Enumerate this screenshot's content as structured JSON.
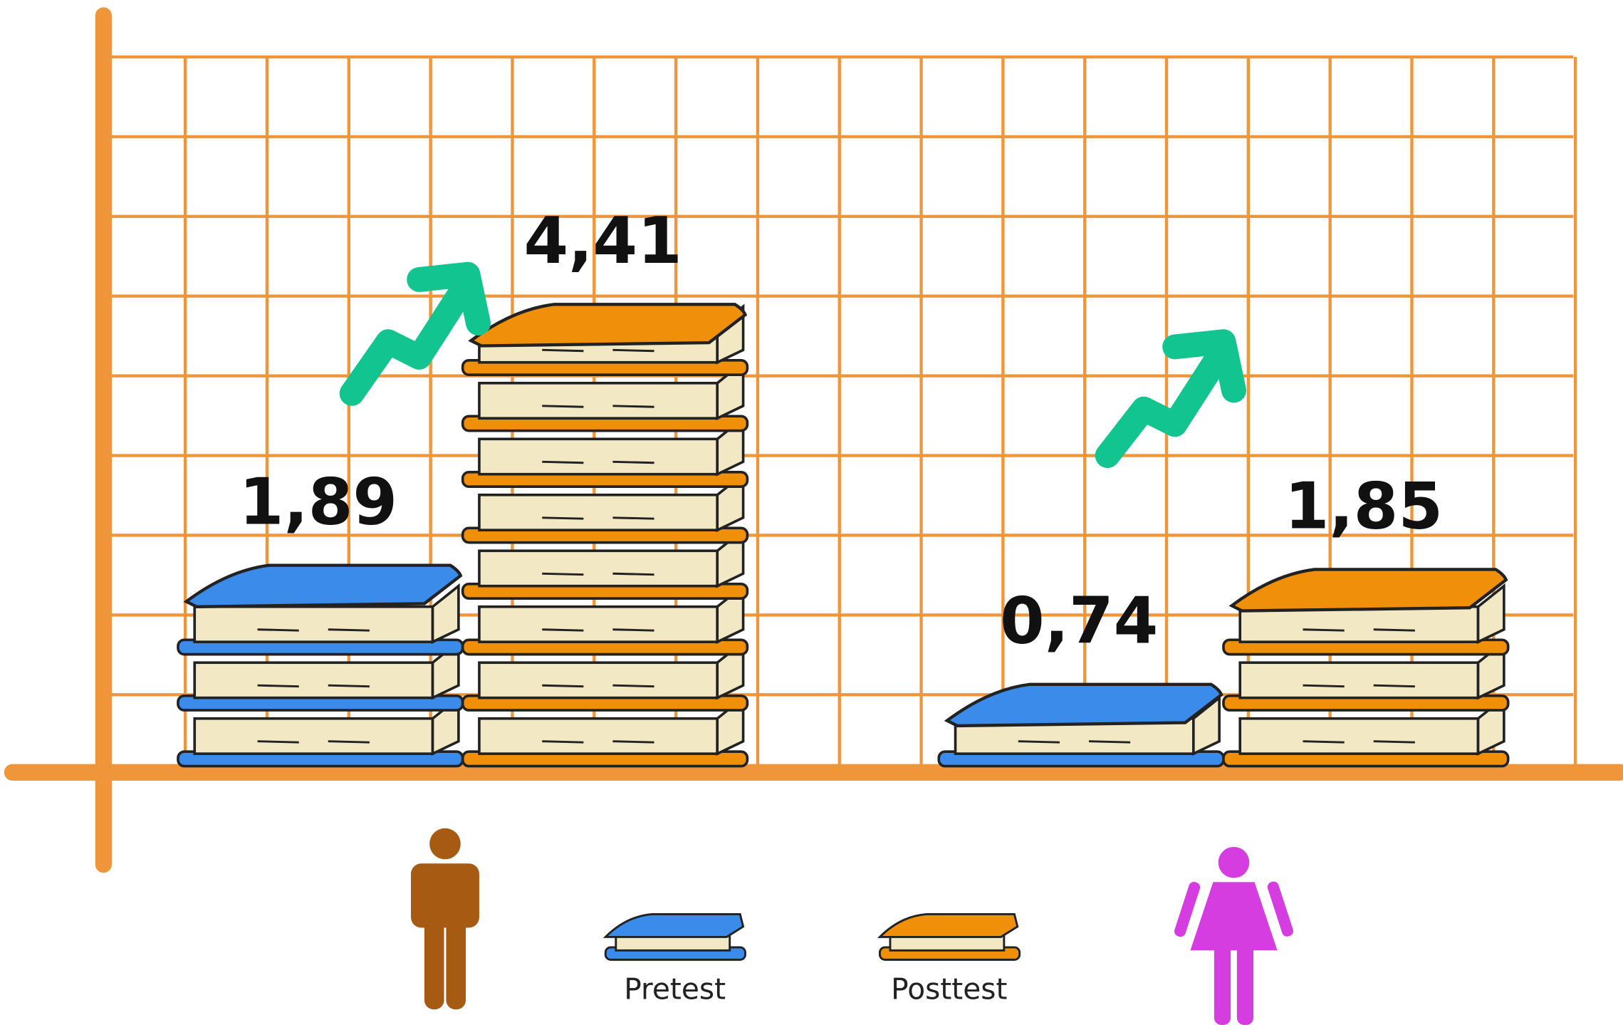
{
  "chart_data": {
    "type": "pictograph",
    "categories": [
      null,
      null
    ],
    "series": [
      {
        "name": "Pretest",
        "color": "#3b8beb",
        "values": [
          1.89,
          0.74
        ],
        "value_labels": [
          "1,89",
          "0,74"
        ]
      },
      {
        "name": "Posttest",
        "color": "#f0900a",
        "values": [
          4.41,
          1.85
        ],
        "value_labels": [
          "4,41",
          "1,85"
        ]
      }
    ]
  }
}
